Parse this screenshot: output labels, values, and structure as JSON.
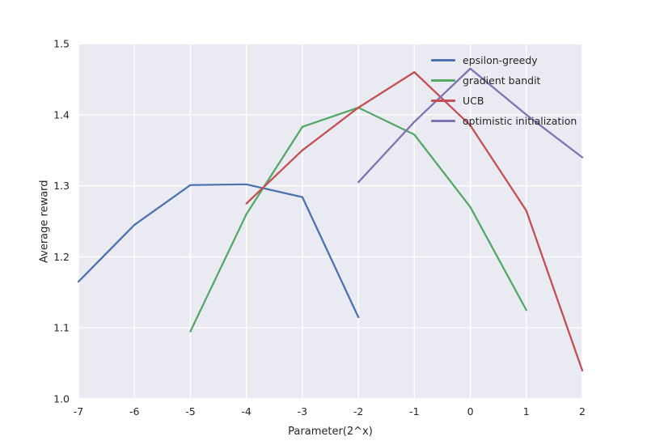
{
  "chart_data": {
    "type": "line",
    "title": "",
    "xlabel": "Parameter(2^x)",
    "ylabel": "Average reward",
    "xlim": [
      -7,
      2
    ],
    "ylim": [
      1.0,
      1.5
    ],
    "x_ticks": [
      -7,
      -6,
      -5,
      -4,
      -3,
      -2,
      -1,
      0,
      1,
      2
    ],
    "y_ticks": [
      1.0,
      1.1,
      1.2,
      1.3,
      1.4,
      1.5
    ],
    "grid": true,
    "legend_position": "upper right",
    "series": [
      {
        "name": "epsilon-greedy",
        "color": "#4C72B0",
        "x": [
          -7,
          -6,
          -5,
          -4,
          -3,
          -2
        ],
        "y": [
          1.165,
          1.245,
          1.301,
          1.302,
          1.284,
          1.115
        ]
      },
      {
        "name": "gradient bandit",
        "color": "#55A868",
        "x": [
          -5,
          -4,
          -3,
          -2,
          -1,
          0,
          1
        ],
        "y": [
          1.095,
          1.26,
          1.383,
          1.41,
          1.372,
          1.27,
          1.125
        ]
      },
      {
        "name": "UCB",
        "color": "#C44E52",
        "x": [
          -4,
          -3,
          -2,
          -1,
          0,
          1,
          2
        ],
        "y": [
          1.275,
          1.35,
          1.41,
          1.46,
          1.385,
          1.265,
          1.04
        ]
      },
      {
        "name": "optimistic initialization",
        "color": "#8172B2",
        "x": [
          -2,
          -1,
          0,
          1,
          2
        ],
        "y": [
          1.305,
          1.39,
          1.465,
          1.4,
          1.34
        ]
      }
    ],
    "styles": {
      "axes_background": "#EAEAF2",
      "grid_color": "#FFFFFF",
      "text_color": "#262626",
      "figure_background": "#FFFFFF"
    }
  }
}
